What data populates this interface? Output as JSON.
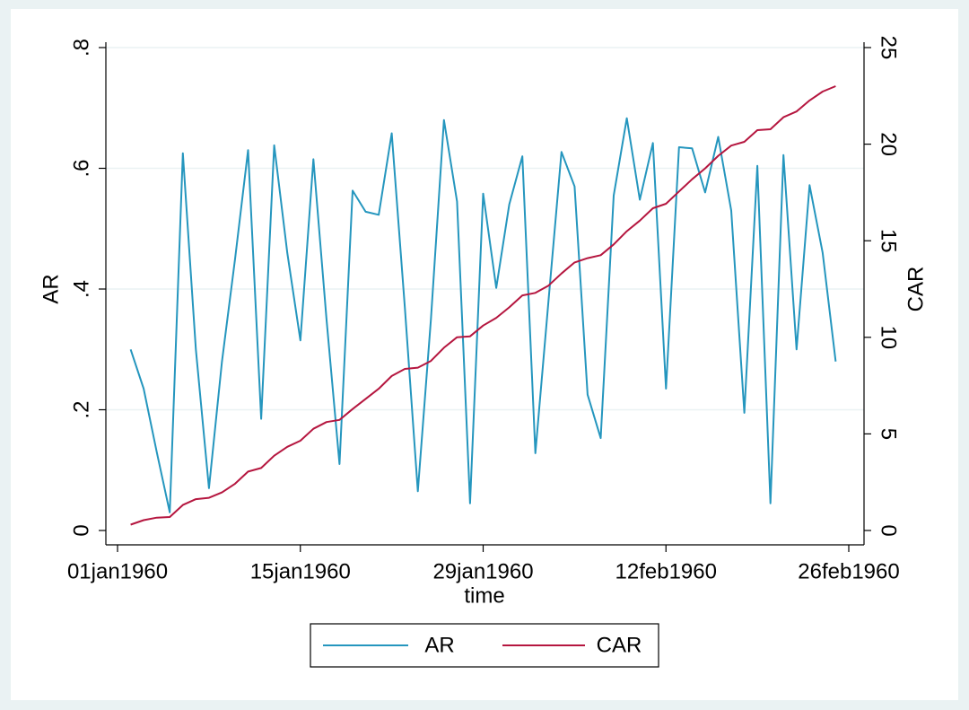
{
  "chart_data": {
    "type": "line",
    "xlabel": "time",
    "ylabel": "AR",
    "y2label": "CAR",
    "x": [
      "1960-01-02",
      "1960-01-03",
      "1960-01-04",
      "1960-01-05",
      "1960-01-06",
      "1960-01-07",
      "1960-01-08",
      "1960-01-09",
      "1960-01-10",
      "1960-01-11",
      "1960-01-12",
      "1960-01-13",
      "1960-01-14",
      "1960-01-15",
      "1960-01-16",
      "1960-01-17",
      "1960-01-18",
      "1960-01-19",
      "1960-01-20",
      "1960-01-21",
      "1960-01-22",
      "1960-01-23",
      "1960-01-24",
      "1960-01-25",
      "1960-01-26",
      "1960-01-27",
      "1960-01-28",
      "1960-01-29",
      "1960-01-30",
      "1960-01-31",
      "1960-02-01",
      "1960-02-02",
      "1960-02-03",
      "1960-02-04",
      "1960-02-05",
      "1960-02-06",
      "1960-02-07",
      "1960-02-08",
      "1960-02-09",
      "1960-02-10",
      "1960-02-11",
      "1960-02-12",
      "1960-02-13",
      "1960-02-14",
      "1960-02-15",
      "1960-02-16",
      "1960-02-17",
      "1960-02-18",
      "1960-02-19",
      "1960-02-20",
      "1960-02-21",
      "1960-02-22",
      "1960-02-23",
      "1960-02-24",
      "1960-02-25"
    ],
    "series": [
      {
        "name": "AR",
        "color": "#2596be",
        "axis": "y",
        "values": [
          0.3,
          0.235,
          0.13,
          0.03,
          0.625,
          0.3,
          0.07,
          0.28,
          0.45,
          0.63,
          0.185,
          0.638,
          0.46,
          0.315,
          0.615,
          0.35,
          0.11,
          0.563,
          0.528,
          0.523,
          0.658,
          0.37,
          0.065,
          0.35,
          0.68,
          0.545,
          0.045,
          0.558,
          0.402,
          0.54,
          0.62,
          0.128,
          0.38,
          0.627,
          0.57,
          0.225,
          0.153,
          0.555,
          0.683,
          0.548,
          0.642,
          0.235,
          0.635,
          0.633,
          0.56,
          0.652,
          0.53,
          0.195,
          0.604,
          0.045,
          0.622,
          0.3,
          0.572,
          0.46,
          0.28
        ]
      },
      {
        "name": "CAR",
        "color": "#b5163f",
        "axis": "y2",
        "values": [
          0.3,
          0.535,
          0.665,
          0.695,
          1.32,
          1.62,
          1.69,
          1.97,
          2.42,
          3.05,
          3.235,
          3.873,
          4.333,
          4.648,
          5.263,
          5.613,
          5.723,
          6.286,
          6.814,
          7.337,
          7.995,
          8.365,
          8.43,
          8.78,
          9.46,
          10.005,
          10.05,
          10.608,
          11.01,
          11.55,
          12.17,
          12.298,
          12.678,
          13.305,
          13.875,
          14.1,
          14.253,
          14.808,
          15.491,
          16.039,
          16.681,
          16.916,
          17.551,
          18.184,
          18.744,
          19.396,
          19.926,
          20.121,
          20.725,
          20.77,
          21.392,
          21.692,
          22.264,
          22.724,
          23.004
        ]
      }
    ],
    "xlim": [
      "1960-01-01",
      "1960-02-26"
    ],
    "xticks": [
      {
        "value": "1960-01-01",
        "label": "01jan1960"
      },
      {
        "value": "1960-01-15",
        "label": "15jan1960"
      },
      {
        "value": "1960-01-29",
        "label": "29jan1960"
      },
      {
        "value": "1960-02-12",
        "label": "12feb1960"
      },
      {
        "value": "1960-02-26",
        "label": "26feb1960"
      }
    ],
    "ylim": [
      0,
      0.8
    ],
    "yticks": [
      0,
      {
        "value": 0.2,
        "label": ".2"
      },
      {
        "value": 0.4,
        "label": ".4"
      },
      {
        "value": 0.6,
        "label": ".6"
      },
      {
        "value": 0.8,
        "label": ".8"
      }
    ],
    "y2lim": [
      0,
      25
    ],
    "y2ticks": [
      0,
      5,
      10,
      15,
      20,
      25
    ],
    "grid": true,
    "legend": "bottom"
  }
}
